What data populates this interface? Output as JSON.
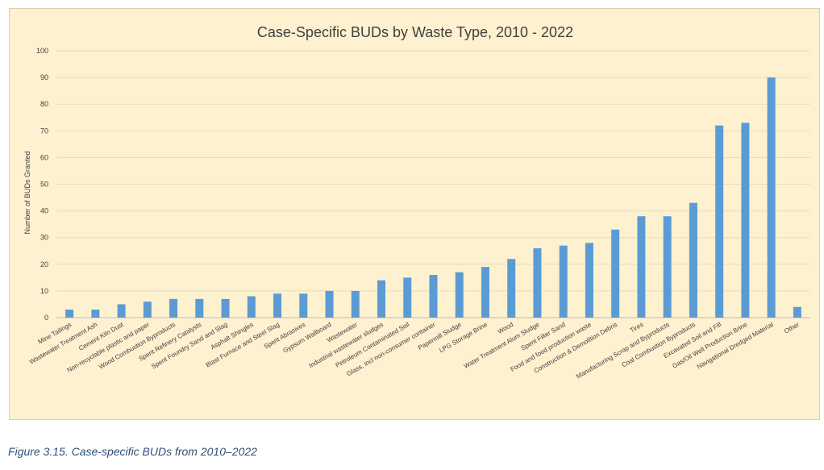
{
  "chart_data": {
    "type": "bar",
    "title": "Case-Specific BUDs by Waste Type, 2010 - 2022",
    "xlabel": "",
    "ylabel": "Number of BUDs Granted",
    "ylim": [
      0,
      100
    ],
    "yticks": [
      0,
      10,
      20,
      30,
      40,
      50,
      60,
      70,
      80,
      90,
      100
    ],
    "grid": true,
    "bar_color": "#5b9bd5",
    "categories": [
      "Mine Tailings",
      "Wastewater Treatment Ash",
      "Cement Kiln Dust",
      "Non-recyclable plastic and paper",
      "Wood Combustion Byproducts",
      "Spent Refinery Catalysts",
      "Spent Foundry Sand and Slag",
      "Asphalt Shingles",
      "Blast Furnace and Steel Slag",
      "Spent Abrasives",
      "Gypsum Wallboard",
      "Wastewater",
      "Industrial wastewater sludges",
      "Petroleum Contaminated Soil",
      "Glass, incl non-consumer container",
      "Papermill Sludge",
      "LPG Storage Brine",
      "Wood",
      "Water Treatment Alum Sludge",
      "Spent Filter Sand",
      "Food and food production waste",
      "Construction & Demolition Debris",
      "Tires",
      "Manufacturing Scrap and Byproducts",
      "Coal Combustion Byproducts",
      "Excavated Soil and Fill",
      "Gas/Oil Well Production Brine",
      "Navigational Dredged Material",
      "Other"
    ],
    "values": [
      3,
      3,
      5,
      6,
      7,
      7,
      7,
      8,
      9,
      9,
      10,
      10,
      14,
      15,
      16,
      17,
      19,
      22,
      26,
      27,
      28,
      33,
      38,
      38,
      43,
      72,
      73,
      90,
      4
    ]
  },
  "caption": "Figure 3.15. Case-specific BUDs from 2010–2022"
}
